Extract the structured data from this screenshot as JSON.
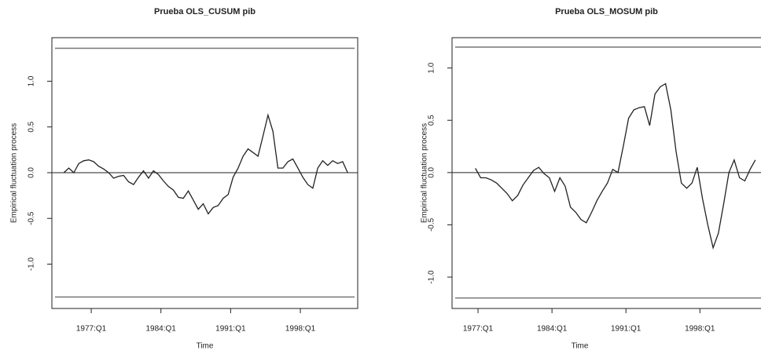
{
  "chart_data": [
    {
      "type": "line",
      "title": "Prueba OLS_CUSUM pib",
      "xlabel": "Time",
      "ylabel": "Empirical fluctuation process",
      "color": "#222222",
      "bound_color": "#777777",
      "xlim": [
        1973.05,
        2003.76
      ],
      "ylim": [
        -1.485,
        1.476
      ],
      "xticks": [
        {
          "value": 1977,
          "label": "1977:Q1"
        },
        {
          "value": 1984,
          "label": "1984:Q1"
        },
        {
          "value": 1991,
          "label": "1991:Q1"
        },
        {
          "value": 1998,
          "label": "1998:Q1"
        }
      ],
      "yticks": [
        {
          "value": -1,
          "label": "-1.0"
        },
        {
          "value": -0.5,
          "label": "-0.5"
        },
        {
          "value": 0,
          "label": "0.0"
        },
        {
          "value": 0.5,
          "label": "0.5"
        },
        {
          "value": 1,
          "label": "1.0"
        }
      ],
      "boundary_lines": [
        1.36,
        -1.36
      ],
      "reference_line": 0,
      "x": [
        1974.25,
        1974.75,
        1975.25,
        1975.75,
        1976.25,
        1976.75,
        1977.25,
        1977.75,
        1978.25,
        1978.75,
        1979.25,
        1979.75,
        1980.25,
        1980.75,
        1981.25,
        1981.75,
        1982.25,
        1982.75,
        1983.25,
        1983.75,
        1984.25,
        1984.75,
        1985.25,
        1985.75,
        1986.25,
        1986.75,
        1987.25,
        1987.75,
        1988.25,
        1988.75,
        1989.25,
        1989.75,
        1990.25,
        1990.75,
        1991.25,
        1991.75,
        1992.25,
        1992.75,
        1993.25,
        1993.75,
        1994.25,
        1994.75,
        1995.25,
        1995.75,
        1996.25,
        1996.75,
        1997.25,
        1997.75,
        1998.25,
        1998.75,
        1999.25,
        1999.75,
        2000.25,
        2000.75,
        2001.25,
        2001.75,
        2002.25,
        2002.75
      ],
      "values": [
        0.0,
        0.05,
        0.0,
        0.1,
        0.13,
        0.14,
        0.12,
        0.07,
        0.04,
        0.0,
        -0.06,
        -0.04,
        -0.03,
        -0.1,
        -0.13,
        -0.05,
        0.02,
        -0.06,
        0.02,
        -0.02,
        -0.09,
        -0.15,
        -0.19,
        -0.27,
        -0.28,
        -0.2,
        -0.3,
        -0.4,
        -0.34,
        -0.45,
        -0.38,
        -0.36,
        -0.28,
        -0.24,
        -0.05,
        0.05,
        0.18,
        0.26,
        0.22,
        0.18,
        0.4,
        0.63,
        0.45,
        0.05,
        0.05,
        0.12,
        0.15,
        0.05,
        -0.05,
        -0.13,
        -0.17,
        0.05,
        0.13,
        0.08,
        0.13,
        0.1,
        0.12,
        0.0
      ]
    },
    {
      "type": "line",
      "title": "Prueba OLS_MOSUM pib",
      "xlabel": "Time",
      "ylabel": "Empirical fluctuation process",
      "color": "#222222",
      "bound_color": "#777777",
      "xlim": [
        1974.54,
        2005.05
      ],
      "ylim": [
        -1.3,
        1.29
      ],
      "xticks": [
        {
          "value": 1977,
          "label": "1977:Q1"
        },
        {
          "value": 1984,
          "label": "1984:Q1"
        },
        {
          "value": 1991,
          "label": "1991:Q1"
        },
        {
          "value": 1998,
          "label": "1998:Q1"
        }
      ],
      "yticks": [
        {
          "value": -1,
          "label": "-1.0"
        },
        {
          "value": -0.5,
          "label": "-0.5"
        },
        {
          "value": 0,
          "label": "0.0"
        },
        {
          "value": 0.5,
          "label": "0.5"
        },
        {
          "value": 1,
          "label": "1.0"
        }
      ],
      "boundary_lines": [
        1.2,
        -1.2
      ],
      "reference_line": 0,
      "x": [
        1976.75,
        1977.25,
        1977.75,
        1978.25,
        1978.75,
        1979.25,
        1979.75,
        1980.25,
        1980.75,
        1981.25,
        1981.75,
        1982.25,
        1982.75,
        1983.25,
        1983.75,
        1984.25,
        1984.75,
        1985.25,
        1985.75,
        1986.25,
        1986.75,
        1987.25,
        1987.75,
        1988.25,
        1988.75,
        1989.25,
        1989.75,
        1990.25,
        1990.75,
        1991.25,
        1991.75,
        1992.25,
        1992.75,
        1993.25,
        1993.75,
        1994.25,
        1994.75,
        1995.25,
        1995.75,
        1996.25,
        1996.75,
        1997.25,
        1997.75,
        1998.25,
        1998.75,
        1999.25,
        1999.75,
        2000.25,
        2000.75,
        2001.25,
        2001.75,
        2002.25,
        2002.75,
        2003.25
      ],
      "values": [
        0.04,
        -0.05,
        -0.05,
        -0.07,
        -0.1,
        -0.15,
        -0.2,
        -0.27,
        -0.22,
        -0.12,
        -0.05,
        0.02,
        0.05,
        -0.01,
        -0.05,
        -0.18,
        -0.05,
        -0.13,
        -0.33,
        -0.38,
        -0.45,
        -0.48,
        -0.38,
        -0.27,
        -0.18,
        -0.1,
        0.03,
        0.0,
        0.25,
        0.52,
        0.6,
        0.62,
        0.63,
        0.45,
        0.75,
        0.82,
        0.85,
        0.6,
        0.2,
        -0.1,
        -0.15,
        -0.1,
        0.05,
        -0.25,
        -0.5,
        -0.72,
        -0.58,
        -0.3,
        0.0,
        0.12,
        -0.05,
        -0.08,
        0.03,
        0.12
      ]
    }
  ]
}
